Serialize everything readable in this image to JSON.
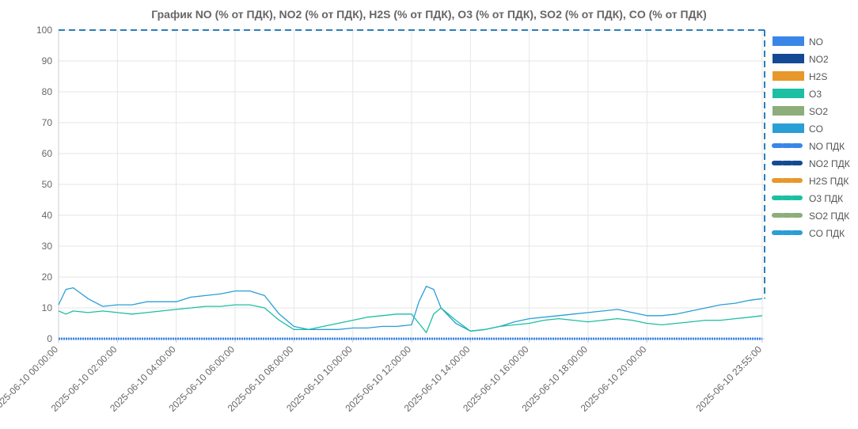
{
  "chart_data": {
    "type": "line",
    "title": "График  NO (% от ПДК), NO2 (% от ПДК), H2S (% от ПДК), O3 (% от ПДК), SO2 (% от ПДК), CO (% от ПДК)",
    "xlabel": "",
    "ylabel": "",
    "ylim": [
      0,
      100
    ],
    "yticks": [
      "0",
      "10",
      "20",
      "30",
      "40",
      "50",
      "60",
      "70",
      "80",
      "90",
      "100"
    ],
    "x_hours": [
      0,
      0.25,
      0.5,
      1,
      1.5,
      2,
      2.5,
      3,
      3.5,
      4,
      4.5,
      5,
      5.5,
      6,
      6.5,
      7,
      7.5,
      8,
      8.5,
      9,
      9.5,
      10,
      10.5,
      11,
      11.5,
      12,
      12.25,
      12.5,
      12.75,
      13,
      13.5,
      14,
      14.5,
      15,
      15.5,
      16,
      16.5,
      17,
      17.5,
      18,
      18.5,
      19,
      19.5,
      20,
      20.5,
      21,
      21.5,
      22,
      22.5,
      23,
      23.5,
      23.92
    ],
    "xtick_labels": [
      "2025-06-10 00:00:00",
      "2025-06-10 02:00:00",
      "2025-06-10 04:00:00",
      "2025-06-10 06:00:00",
      "2025-06-10 08:00:00",
      "2025-06-10 10:00:00",
      "2025-06-10 12:00:00",
      "2025-06-10 14:00:00",
      "2025-06-10 16:00:00",
      "2025-06-10 18:00:00",
      "2025-06-10 20:00:00",
      "2025-06-10 23:55:00"
    ],
    "xtick_hours": [
      0,
      2,
      4,
      6,
      8,
      10,
      12,
      14,
      16,
      18,
      20,
      23.92
    ],
    "series": [
      {
        "name": "NO",
        "color": "#3a86e8",
        "values": [
          0,
          0,
          0,
          0,
          0,
          0,
          0,
          0,
          0,
          0,
          0,
          0,
          0,
          0,
          0,
          0,
          0,
          0,
          0,
          0,
          0,
          0,
          0,
          0,
          0,
          0,
          0,
          0,
          0,
          0,
          0,
          0,
          0,
          0,
          0,
          0,
          0,
          0,
          0,
          0,
          0,
          0,
          0,
          0,
          0,
          0,
          0,
          0,
          0,
          0,
          0,
          0
        ]
      },
      {
        "name": "NO2",
        "color": "#144a94",
        "values": [
          0,
          0,
          0,
          0,
          0,
          0,
          0,
          0,
          0,
          0,
          0,
          0,
          0,
          0,
          0,
          0,
          0,
          0,
          0,
          0,
          0,
          0,
          0,
          0,
          0,
          0,
          0,
          0,
          0,
          0,
          0,
          0,
          0,
          0,
          0,
          0,
          0,
          0,
          0,
          0,
          0,
          0,
          0,
          0,
          0,
          0,
          0,
          0,
          0,
          0,
          0,
          0
        ]
      },
      {
        "name": "H2S",
        "color": "#e8972a",
        "values": [
          0,
          0,
          0,
          0,
          0,
          0,
          0,
          0,
          0,
          0,
          0,
          0,
          0,
          0,
          0,
          0,
          0,
          0,
          0,
          0,
          0,
          0,
          0,
          0,
          0,
          0,
          0,
          0,
          0,
          0,
          0,
          0,
          0,
          0,
          0,
          0,
          0,
          0,
          0,
          0,
          0,
          0,
          0,
          0,
          0,
          0,
          0,
          0,
          0,
          0,
          0,
          0
        ]
      },
      {
        "name": "O3",
        "color": "#1dbfa3",
        "values": [
          9,
          8,
          9,
          8.5,
          9,
          8.5,
          8,
          8.5,
          9,
          9.5,
          10,
          10.5,
          10.5,
          11,
          11,
          10,
          6,
          3,
          3,
          4,
          5,
          6,
          7,
          7.5,
          8,
          8,
          5,
          2,
          8,
          10,
          6,
          2.5,
          3,
          4,
          4.5,
          5,
          6,
          6.5,
          6,
          5.5,
          6,
          6.5,
          6,
          5,
          4.5,
          5,
          5.5,
          6,
          6,
          6.5,
          7,
          7.5
        ]
      },
      {
        "name": "SO2",
        "color": "#8dae7b",
        "values": [
          0,
          0,
          0,
          0,
          0,
          0,
          0,
          0,
          0,
          0,
          0,
          0,
          0,
          0,
          0,
          0,
          0,
          0,
          0,
          0,
          0,
          0,
          0,
          0,
          0,
          0,
          0,
          0,
          0,
          0,
          0,
          0,
          0,
          0,
          0,
          0,
          0,
          0,
          0,
          0,
          0,
          0,
          0,
          0,
          0,
          0,
          0,
          0,
          0,
          0,
          0,
          0
        ]
      },
      {
        "name": "CO",
        "color": "#2a9fd6",
        "values": [
          11,
          16,
          16.5,
          13,
          10.5,
          11,
          11,
          12,
          12,
          12,
          13.5,
          14,
          14.5,
          15.5,
          15.5,
          14,
          8,
          4,
          3,
          3,
          3,
          3.5,
          3.5,
          4,
          4,
          4.5,
          12,
          17,
          16,
          10,
          5,
          2.5,
          3,
          4,
          5.5,
          6.5,
          7,
          7.5,
          8,
          8.5,
          9,
          9.5,
          8.5,
          7.5,
          7.5,
          8,
          9,
          10,
          11,
          11.5,
          12.5,
          13
        ]
      }
    ],
    "legend": [
      {
        "label": "NO",
        "color": "#3a86e8",
        "style": "solid"
      },
      {
        "label": "NO2",
        "color": "#144a94",
        "style": "solid"
      },
      {
        "label": "H2S",
        "color": "#e8972a",
        "style": "solid"
      },
      {
        "label": "O3",
        "color": "#1dbfa3",
        "style": "solid"
      },
      {
        "label": "SO2",
        "color": "#8dae7b",
        "style": "solid"
      },
      {
        "label": "CO",
        "color": "#2a9fd6",
        "style": "solid"
      },
      {
        "label": "NO ПДК",
        "color": "#3a86e8",
        "style": "dashed"
      },
      {
        "label": "NO2 ПДК",
        "color": "#144a94",
        "style": "dashed"
      },
      {
        "label": "H2S ПДК",
        "color": "#e8972a",
        "style": "dashed"
      },
      {
        "label": "O3 ПДК",
        "color": "#1dbfa3",
        "style": "dashed"
      },
      {
        "label": "SO2 ПДК",
        "color": "#8dae7b",
        "style": "dashed"
      },
      {
        "label": "CO ПДК",
        "color": "#2a9fd6",
        "style": "dashed"
      }
    ],
    "limit_value": 100,
    "limit_color": "#2a7fb8",
    "legend_position": "right",
    "grid": true
  }
}
